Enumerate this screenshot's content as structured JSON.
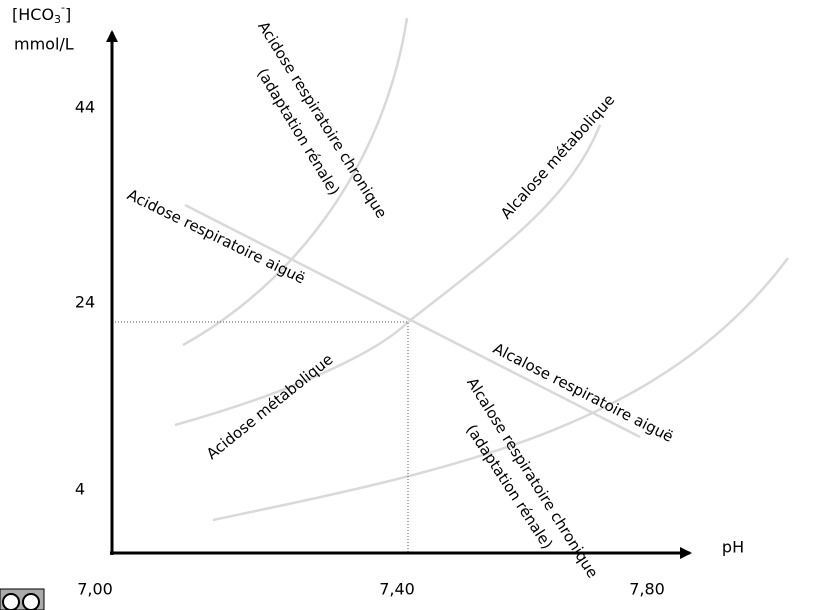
{
  "y_axis": {
    "title": {
      "prefix": "[HCO",
      "sub": "3",
      "sup": "-",
      "suffix": "]"
    },
    "unit": "mmol/L",
    "ticks": [
      "44",
      "24",
      "4"
    ]
  },
  "x_axis": {
    "title": "pH",
    "ticks": [
      "7,00",
      "7,40",
      "7,80"
    ]
  },
  "regions": {
    "chronic_resp_acidosis": "Acidose respiratoire chronique",
    "chronic_resp_acidosis_note": "(adaptation rénale)",
    "metabolic_alkalosis": "Alcalose métabolique",
    "acute_resp_acidosis": "Acidose respiratoire aiguë",
    "acute_resp_alkalosis": "Alcalose respiratoire aiguë",
    "metabolic_acidosis": "Acidose métabolique",
    "chronic_resp_alkalosis": "Alcalose respiratoire chronique",
    "chronic_resp_alkalosis_note": "(adaptation rénale)"
  }
}
